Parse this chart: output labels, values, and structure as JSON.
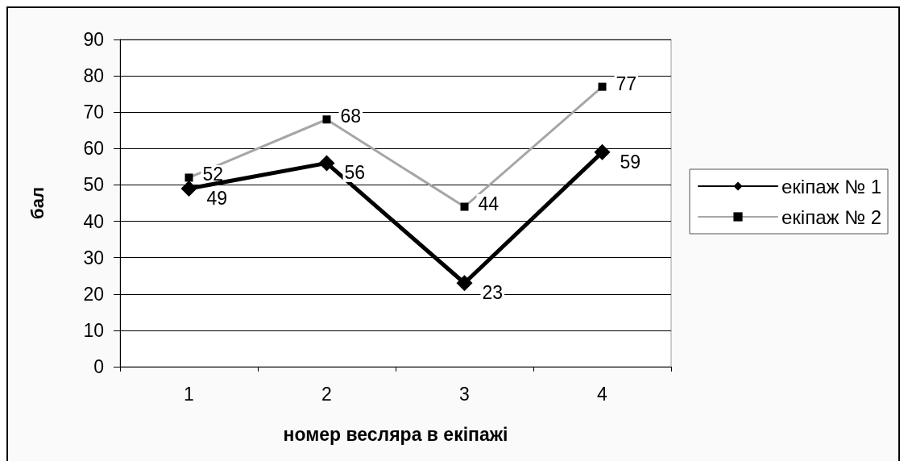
{
  "chart_data": {
    "type": "line",
    "xlabel": "номер весляра в екіпажі",
    "ylabel": "бал",
    "categories": [
      "1",
      "2",
      "3",
      "4"
    ],
    "series": [
      {
        "name": "екіпаж № 1",
        "color": "#000000",
        "marker": "diamond",
        "values": [
          49,
          56,
          23,
          59
        ]
      },
      {
        "name": "екіпаж № 2",
        "color": "#a6a6a6",
        "marker": "square",
        "values": [
          52,
          68,
          44,
          77
        ]
      }
    ],
    "ylim": [
      0,
      90
    ],
    "yticks": [
      0,
      10,
      20,
      30,
      40,
      50,
      60,
      70,
      80,
      90
    ],
    "grid": "y",
    "legend": "right",
    "data_labels": true
  }
}
